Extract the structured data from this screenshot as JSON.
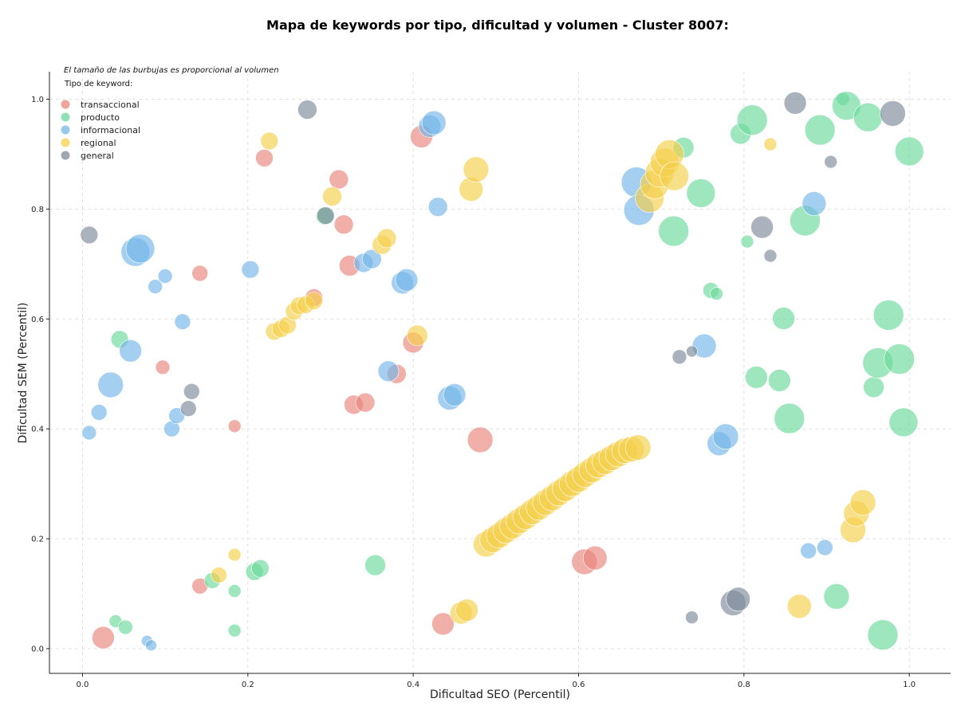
{
  "chart_data": {
    "type": "scatter",
    "title": "Mapa de keywords por tipo, dificultad y volumen - Cluster 8007:",
    "xlabel": "Dificultad SEO (Percentil)",
    "ylabel": "Dificultad SEM (Percentil)",
    "xlim": [
      -0.04,
      1.05
    ],
    "ylim": [
      -0.045,
      1.05
    ],
    "xticks": [
      "0.0",
      "0.2",
      "0.4",
      "0.6",
      "0.8",
      "1.0"
    ],
    "yticks": [
      "0.0",
      "0.2",
      "0.4",
      "0.6",
      "0.8",
      "1.0"
    ],
    "grid": true,
    "note": "El tamaño de las burbujas es proporcional al volumen",
    "legend_title": "Tipo de keyword:",
    "legend_position": "top-left",
    "series": [
      {
        "name": "transaccional",
        "color": "#e8847a",
        "points": [
          [
            0.025,
            0.02,
            14
          ],
          [
            0.142,
            0.114,
            10
          ],
          [
            0.142,
            0.683,
            10
          ],
          [
            0.097,
            0.512,
            9
          ],
          [
            0.184,
            0.405,
            8
          ],
          [
            0.22,
            0.893,
            11
          ],
          [
            0.31,
            0.854,
            12
          ],
          [
            0.316,
            0.772,
            12
          ],
          [
            0.323,
            0.697,
            13
          ],
          [
            0.28,
            0.639,
            11
          ],
          [
            0.328,
            0.444,
            12
          ],
          [
            0.342,
            0.448,
            12
          ],
          [
            0.38,
            0.5,
            12
          ],
          [
            0.4,
            0.557,
            13
          ],
          [
            0.41,
            0.932,
            14
          ],
          [
            0.436,
            0.045,
            14
          ],
          [
            0.481,
            0.38,
            16
          ],
          [
            0.607,
            0.158,
            16
          ],
          [
            0.62,
            0.165,
            15
          ]
        ]
      },
      {
        "name": "producto",
        "color": "#6ad89a",
        "points": [
          [
            0.04,
            0.05,
            8
          ],
          [
            0.052,
            0.039,
            9
          ],
          [
            0.045,
            0.563,
            11
          ],
          [
            0.157,
            0.124,
            10
          ],
          [
            0.184,
            0.105,
            8
          ],
          [
            0.184,
            0.033,
            8
          ],
          [
            0.208,
            0.14,
            11
          ],
          [
            0.215,
            0.146,
            11
          ],
          [
            0.354,
            0.152,
            13
          ],
          [
            0.293,
            0.787,
            11
          ],
          [
            0.727,
            0.912,
            13
          ],
          [
            0.715,
            0.76,
            19
          ],
          [
            0.748,
            0.829,
            18
          ],
          [
            0.796,
            0.937,
            13
          ],
          [
            0.81,
            0.962,
            19
          ],
          [
            0.804,
            0.741,
            8
          ],
          [
            0.76,
            0.652,
            10
          ],
          [
            0.767,
            0.646,
            8
          ],
          [
            0.815,
            0.494,
            14
          ],
          [
            0.843,
            0.488,
            14
          ],
          [
            0.848,
            0.601,
            14
          ],
          [
            0.855,
            0.419,
            19
          ],
          [
            0.874,
            0.779,
            19
          ],
          [
            0.892,
            0.944,
            19
          ],
          [
            0.92,
            1.0,
            8
          ],
          [
            0.924,
            0.988,
            18
          ],
          [
            0.95,
            0.967,
            18
          ],
          [
            0.957,
            0.476,
            13
          ],
          [
            0.962,
            0.52,
            19
          ],
          [
            0.975,
            0.607,
            19
          ],
          [
            0.988,
            0.527,
            19
          ],
          [
            0.993,
            0.412,
            18
          ],
          [
            1.0,
            0.905,
            18
          ],
          [
            0.912,
            0.095,
            16
          ],
          [
            0.968,
            0.025,
            19
          ]
        ]
      },
      {
        "name": "informacional",
        "color": "#73b6e8",
        "points": [
          [
            0.008,
            0.393,
            9
          ],
          [
            0.02,
            0.43,
            10
          ],
          [
            0.034,
            0.48,
            16
          ],
          [
            0.058,
            0.542,
            14
          ],
          [
            0.064,
            0.722,
            18
          ],
          [
            0.07,
            0.728,
            18
          ],
          [
            0.078,
            0.014,
            7
          ],
          [
            0.083,
            0.006,
            7
          ],
          [
            0.088,
            0.659,
            9
          ],
          [
            0.1,
            0.678,
            9
          ],
          [
            0.108,
            0.4,
            10
          ],
          [
            0.114,
            0.424,
            10
          ],
          [
            0.121,
            0.595,
            10
          ],
          [
            0.203,
            0.69,
            11
          ],
          [
            0.34,
            0.702,
            12
          ],
          [
            0.35,
            0.709,
            12
          ],
          [
            0.37,
            0.505,
            13
          ],
          [
            0.387,
            0.666,
            14
          ],
          [
            0.392,
            0.671,
            14
          ],
          [
            0.43,
            0.804,
            12
          ],
          [
            0.42,
            0.951,
            14
          ],
          [
            0.425,
            0.957,
            15
          ],
          [
            0.444,
            0.456,
            15
          ],
          [
            0.45,
            0.462,
            14
          ],
          [
            0.67,
            0.849,
            19
          ],
          [
            0.673,
            0.798,
            19
          ],
          [
            0.752,
            0.551,
            15
          ],
          [
            0.77,
            0.373,
            15
          ],
          [
            0.778,
            0.386,
            16
          ],
          [
            0.878,
            0.178,
            10
          ],
          [
            0.898,
            0.184,
            10
          ],
          [
            0.885,
            0.81,
            15
          ]
        ]
      },
      {
        "name": "regional",
        "color": "#f5d04a",
        "points": [
          [
            0.165,
            0.134,
            10
          ],
          [
            0.184,
            0.171,
            8
          ],
          [
            0.226,
            0.924,
            11
          ],
          [
            0.232,
            0.577,
            11
          ],
          [
            0.24,
            0.582,
            11
          ],
          [
            0.248,
            0.589,
            11
          ],
          [
            0.256,
            0.614,
            11
          ],
          [
            0.262,
            0.624,
            11
          ],
          [
            0.27,
            0.626,
            11
          ],
          [
            0.28,
            0.633,
            11
          ],
          [
            0.302,
            0.823,
            12
          ],
          [
            0.362,
            0.735,
            12
          ],
          [
            0.368,
            0.747,
            12
          ],
          [
            0.405,
            0.57,
            13
          ],
          [
            0.458,
            0.065,
            14
          ],
          [
            0.465,
            0.07,
            14
          ],
          [
            0.47,
            0.836,
            15
          ],
          [
            0.476,
            0.872,
            16
          ],
          [
            0.488,
            0.19,
            16
          ],
          [
            0.496,
            0.198,
            16
          ],
          [
            0.504,
            0.206,
            16
          ],
          [
            0.512,
            0.215,
            16
          ],
          [
            0.52,
            0.223,
            16
          ],
          [
            0.528,
            0.232,
            16
          ],
          [
            0.536,
            0.24,
            16
          ],
          [
            0.544,
            0.249,
            16
          ],
          [
            0.552,
            0.257,
            16
          ],
          [
            0.56,
            0.266,
            16
          ],
          [
            0.568,
            0.274,
            16
          ],
          [
            0.576,
            0.283,
            16
          ],
          [
            0.584,
            0.291,
            16
          ],
          [
            0.592,
            0.3,
            16
          ],
          [
            0.6,
            0.308,
            16
          ],
          [
            0.608,
            0.317,
            16
          ],
          [
            0.616,
            0.325,
            16
          ],
          [
            0.624,
            0.334,
            16
          ],
          [
            0.632,
            0.34,
            16
          ],
          [
            0.64,
            0.347,
            16
          ],
          [
            0.648,
            0.354,
            16
          ],
          [
            0.656,
            0.36,
            16
          ],
          [
            0.664,
            0.363,
            16
          ],
          [
            0.672,
            0.366,
            16
          ],
          [
            0.686,
            0.82,
            18
          ],
          [
            0.692,
            0.845,
            18
          ],
          [
            0.698,
            0.866,
            18
          ],
          [
            0.704,
            0.885,
            18
          ],
          [
            0.71,
            0.9,
            18
          ],
          [
            0.716,
            0.86,
            18
          ],
          [
            0.832,
            0.918,
            8
          ],
          [
            0.867,
            0.077,
            15
          ],
          [
            0.932,
            0.216,
            16
          ],
          [
            0.936,
            0.246,
            16
          ],
          [
            0.944,
            0.266,
            16
          ]
        ]
      },
      {
        "name": "general",
        "color": "#7d8b99",
        "points": [
          [
            0.008,
            0.753,
            11
          ],
          [
            0.132,
            0.468,
            10
          ],
          [
            0.128,
            0.437,
            10
          ],
          [
            0.272,
            0.981,
            12
          ],
          [
            0.294,
            0.788,
            11
          ],
          [
            0.722,
            0.531,
            9
          ],
          [
            0.737,
            0.541,
            7
          ],
          [
            0.737,
            0.057,
            8
          ],
          [
            0.787,
            0.083,
            16
          ],
          [
            0.793,
            0.09,
            15
          ],
          [
            0.822,
            0.767,
            14
          ],
          [
            0.832,
            0.715,
            8
          ],
          [
            0.862,
            0.993,
            14
          ],
          [
            0.905,
            0.886,
            8
          ],
          [
            0.98,
            0.974,
            16
          ]
        ]
      }
    ]
  }
}
